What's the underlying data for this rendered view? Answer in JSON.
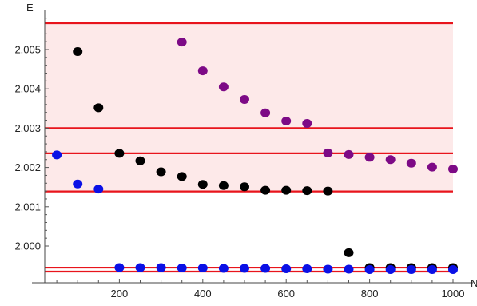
{
  "chart_data": {
    "type": "scatter",
    "title": "",
    "xlabel": "N",
    "ylabel": "E",
    "xlim": [
      0,
      1000
    ],
    "ylim": [
      1.99935,
      2.0068
    ],
    "x_ticks": [
      200,
      400,
      600,
      800,
      1000
    ],
    "y_ticks": [
      2.0,
      2.001,
      2.002,
      2.003,
      2.004,
      2.005
    ],
    "x_tick_labels": [
      "200",
      "400",
      "600",
      "800",
      "1000"
    ],
    "y_tick_labels": [
      "2.000",
      "2.001",
      "2.002",
      "2.003",
      "2.004",
      "2.005"
    ],
    "grid": false,
    "colors": {
      "black": "#000000",
      "blue": "#0a10e6",
      "purple": "#7d0a86",
      "reference_line": "#e8141c",
      "band_fill": "#fde9e9"
    },
    "horizontal_lines": [
      2.00567,
      2.003,
      2.00236,
      2.00139,
      1.99945,
      1.99935
    ],
    "shaded_bands": [
      [
        2.00139,
        2.00567
      ]
    ],
    "series": [
      {
        "color_key": "black",
        "points": [
          [
            100,
            2.00495
          ],
          [
            150,
            2.00352
          ],
          [
            200,
            2.00236
          ],
          [
            250,
            2.00217
          ],
          [
            300,
            2.00189
          ],
          [
            350,
            2.00177
          ],
          [
            400,
            2.00157
          ],
          [
            450,
            2.00154
          ],
          [
            500,
            2.00151
          ],
          [
            550,
            2.00142
          ],
          [
            600,
            2.00142
          ],
          [
            650,
            2.00141
          ],
          [
            700,
            2.0014
          ],
          [
            750,
            1.99983
          ],
          [
            800,
            1.99945
          ],
          [
            850,
            1.99945
          ],
          [
            900,
            1.99945
          ],
          [
            950,
            1.99945
          ],
          [
            1000,
            1.99945
          ]
        ]
      },
      {
        "color_key": "blue",
        "points": [
          [
            50,
            2.00232
          ],
          [
            100,
            2.00158
          ],
          [
            150,
            2.00145
          ],
          [
            200,
            1.99945
          ],
          [
            250,
            1.99945
          ],
          [
            300,
            1.99945
          ],
          [
            350,
            1.99944
          ],
          [
            400,
            1.99944
          ],
          [
            450,
            1.99943
          ],
          [
            500,
            1.99943
          ],
          [
            550,
            1.99943
          ],
          [
            600,
            1.99942
          ],
          [
            650,
            1.99942
          ],
          [
            700,
            1.99941
          ],
          [
            750,
            1.99941
          ],
          [
            800,
            1.9994
          ],
          [
            850,
            1.9994
          ],
          [
            900,
            1.9994
          ],
          [
            950,
            1.9994
          ],
          [
            1000,
            1.9994
          ]
        ]
      },
      {
        "color_key": "purple",
        "points": [
          [
            350,
            2.00519
          ],
          [
            400,
            2.00446
          ],
          [
            450,
            2.00405
          ],
          [
            500,
            2.00373
          ],
          [
            550,
            2.00339
          ],
          [
            600,
            2.00318
          ],
          [
            650,
            2.00312
          ],
          [
            700,
            2.00237
          ],
          [
            750,
            2.00233
          ],
          [
            800,
            2.00226
          ],
          [
            850,
            2.0022
          ],
          [
            900,
            2.00211
          ],
          [
            950,
            2.00201
          ],
          [
            1000,
            2.00196
          ]
        ]
      }
    ]
  }
}
